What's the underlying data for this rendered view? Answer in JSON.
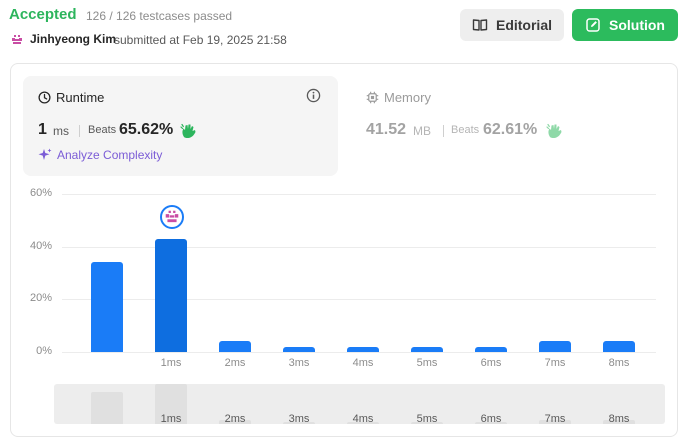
{
  "submission": {
    "status": "Accepted",
    "testcases": "126 / 126 testcases passed",
    "user": "Jinhyeong Kim",
    "submitted_text": "submitted at Feb 19, 2025 21:58"
  },
  "actions": {
    "editorial": "Editorial",
    "solution": "Solution"
  },
  "runtime": {
    "title": "Runtime",
    "value": "1",
    "unit": "ms",
    "beats_label": "Beats",
    "beats_pct": "65.62%",
    "analyze": "Analyze Complexity"
  },
  "memory": {
    "title": "Memory",
    "value": "41.52",
    "unit": "MB",
    "beats_label": "Beats",
    "beats_pct": "62.61%"
  },
  "colors": {
    "accepted": "#2db55d",
    "solution_btn": "#2cbb5d",
    "bar": "#1a7cf7",
    "analyze": "#7b5cd6"
  },
  "icons": [
    "book-icon",
    "edit-icon",
    "clock-icon",
    "info-icon",
    "chip-icon",
    "hands-clap-icon",
    "sparkle-icon",
    "avatar-icon"
  ],
  "chart_data": {
    "type": "bar",
    "categories": [
      "",
      "1ms",
      "2ms",
      "3ms",
      "4ms",
      "5ms",
      "6ms",
      "7ms",
      "8ms"
    ],
    "values": [
      34,
      43,
      4,
      2,
      2,
      2,
      2,
      4,
      4
    ],
    "y_ticks": [
      "60%",
      "40%",
      "20%",
      "0%"
    ],
    "ylim": [
      0,
      60
    ],
    "highlight_category": "1ms",
    "grid": true
  }
}
